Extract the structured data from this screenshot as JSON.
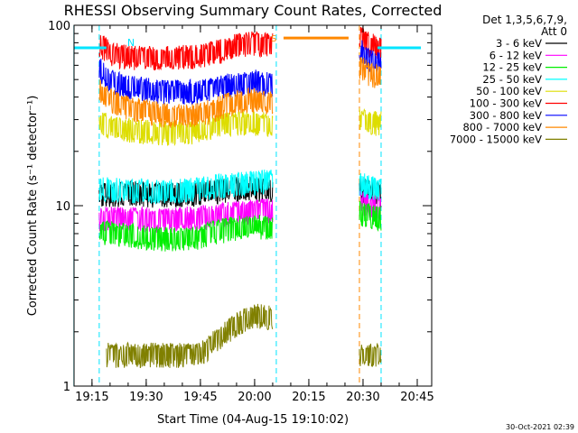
{
  "chart_data": {
    "type": "line",
    "title": "RHESSI Observing Summary Count Rates, Corrected",
    "xlabel": "Start Time (04-Aug-15 19:10:02)",
    "ylabel": "Corrected Count Rate (s⁻¹ detector⁻¹)",
    "x_unit": "minutes",
    "x_range": [
      "19:10:02",
      "20:49:00"
    ],
    "x_ticks": [
      "19:15",
      "19:30",
      "19:45",
      "20:00",
      "20:15",
      "20:30",
      "20:45"
    ],
    "y_scale": "log",
    "ylim": [
      1,
      100
    ],
    "y_ticks": [
      "1",
      "10",
      "100"
    ],
    "legend_header": [
      "Det 1,3,5,6,7,9,",
      "Att 0"
    ],
    "legend_position": "top-right",
    "markers": {
      "N": "19:24",
      "S": "20:06"
    },
    "data_gaps": [
      [
        "19:10",
        "19:17"
      ],
      [
        "20:06",
        "20:29"
      ],
      [
        "20:35",
        "20:49"
      ]
    ],
    "series": [
      {
        "name": "3 - 6 keV",
        "color": "#000000",
        "segments": [
          [
            [
              "19:17",
              11.5
            ],
            [
              "19:25",
              11.8
            ],
            [
              "19:35",
              11.5
            ],
            [
              "19:45",
              11.8
            ],
            [
              "19:50",
              12.2
            ],
            [
              "19:55",
              12.5
            ],
            [
              "20:00",
              12.5
            ],
            [
              "20:05",
              12
            ]
          ],
          [
            [
              "20:29",
              12.5
            ],
            [
              "20:32",
              12
            ],
            [
              "20:35",
              11.5
            ]
          ]
        ]
      },
      {
        "name": "6 - 12 keV",
        "color": "#ff00ff",
        "segments": [
          [
            [
              "19:17",
              8.6
            ],
            [
              "19:25",
              8.5
            ],
            [
              "19:35",
              8.4
            ],
            [
              "19:45",
              8.6
            ],
            [
              "19:55",
              9.2
            ],
            [
              "20:00",
              9.4
            ],
            [
              "20:05",
              9.5
            ]
          ],
          [
            [
              "20:29",
              10.5
            ],
            [
              "20:32",
              10
            ],
            [
              "20:35",
              9.8
            ]
          ]
        ]
      },
      {
        "name": "12 - 25 keV",
        "color": "#00ee00",
        "segments": [
          [
            [
              "19:17",
              7.2
            ],
            [
              "19:25",
              6.9
            ],
            [
              "19:35",
              6.6
            ],
            [
              "19:45",
              6.8
            ],
            [
              "19:50",
              7.3
            ],
            [
              "20:00",
              7.8
            ],
            [
              "20:05",
              7.6
            ]
          ],
          [
            [
              "20:29",
              9.2
            ],
            [
              "20:32",
              8.8
            ],
            [
              "20:35",
              8.6
            ]
          ]
        ]
      },
      {
        "name": "25 - 50 keV",
        "color": "#00ffff",
        "segments": [
          [
            [
              "19:17",
              12.5
            ],
            [
              "19:25",
              12.3
            ],
            [
              "19:35",
              12.0
            ],
            [
              "19:45",
              12.5
            ],
            [
              "19:50",
              13.0
            ],
            [
              "19:55",
              13.3
            ],
            [
              "20:00",
              13.5
            ],
            [
              "20:05",
              13.8
            ]
          ],
          [
            [
              "20:29",
              13.5
            ],
            [
              "20:32",
              12.8
            ],
            [
              "20:35",
              12.5
            ]
          ]
        ]
      },
      {
        "name": "50 - 100 keV",
        "color": "#dddd00",
        "segments": [
          [
            [
              "19:17",
              29
            ],
            [
              "19:25",
              26.5
            ],
            [
              "19:35",
              25.5
            ],
            [
              "19:45",
              26
            ],
            [
              "19:50",
              28
            ],
            [
              "19:55",
              29
            ],
            [
              "20:00",
              29
            ],
            [
              "20:05",
              28
            ]
          ],
          [
            [
              "20:29",
              30
            ],
            [
              "20:32",
              29
            ],
            [
              "20:35",
              29
            ]
          ]
        ]
      },
      {
        "name": "100 - 300 keV",
        "color": "#ff0000",
        "segments": [
          [
            [
              "19:17",
              80
            ],
            [
              "19:20",
              70
            ],
            [
              "19:25",
              67
            ],
            [
              "19:35",
              66
            ],
            [
              "19:45",
              68
            ],
            [
              "19:50",
              72
            ],
            [
              "19:55",
              78
            ],
            [
              "20:00",
              80
            ],
            [
              "20:05",
              78
            ]
          ],
          [
            [
              "20:29",
              88
            ],
            [
              "20:31",
              80
            ],
            [
              "20:35",
              75
            ]
          ]
        ]
      },
      {
        "name": "300 - 800 keV",
        "color": "#0000ff",
        "segments": [
          [
            [
              "19:17",
              58
            ],
            [
              "19:20",
              50
            ],
            [
              "19:25",
              46
            ],
            [
              "19:35",
              43
            ],
            [
              "19:45",
              43
            ],
            [
              "19:50",
              45
            ],
            [
              "19:55",
              48
            ],
            [
              "20:00",
              49
            ],
            [
              "20:05",
              47
            ]
          ],
          [
            [
              "20:29",
              75
            ],
            [
              "20:31",
              65
            ],
            [
              "20:35",
              62
            ]
          ]
        ]
      },
      {
        "name": "800 - 7000 keV",
        "color": "#ff8800",
        "segments": [
          [
            [
              "19:17",
              44
            ],
            [
              "19:20",
              39
            ],
            [
              "19:25",
              35
            ],
            [
              "19:35",
              32
            ],
            [
              "19:45",
              32
            ],
            [
              "19:50",
              35
            ],
            [
              "19:55",
              38
            ],
            [
              "20:00",
              39
            ],
            [
              "20:05",
              37
            ]
          ],
          [
            [
              "20:29",
              60
            ],
            [
              "20:31",
              55
            ],
            [
              "20:35",
              52
            ]
          ]
        ]
      },
      {
        "name": "7000 - 15000 keV",
        "color": "#808000",
        "segments": [
          [
            [
              "19:19",
              1.5
            ],
            [
              "19:35",
              1.5
            ],
            [
              "19:45",
              1.5
            ],
            [
              "19:55",
              2.2
            ],
            [
              "20:00",
              2.5
            ],
            [
              "20:05",
              2.4
            ]
          ],
          [
            [
              "20:29",
              1.5
            ],
            [
              "20:32",
              1.5
            ],
            [
              "20:35",
              1.5
            ]
          ]
        ]
      }
    ]
  },
  "footer_date": "30-Oct-2021 02:39"
}
